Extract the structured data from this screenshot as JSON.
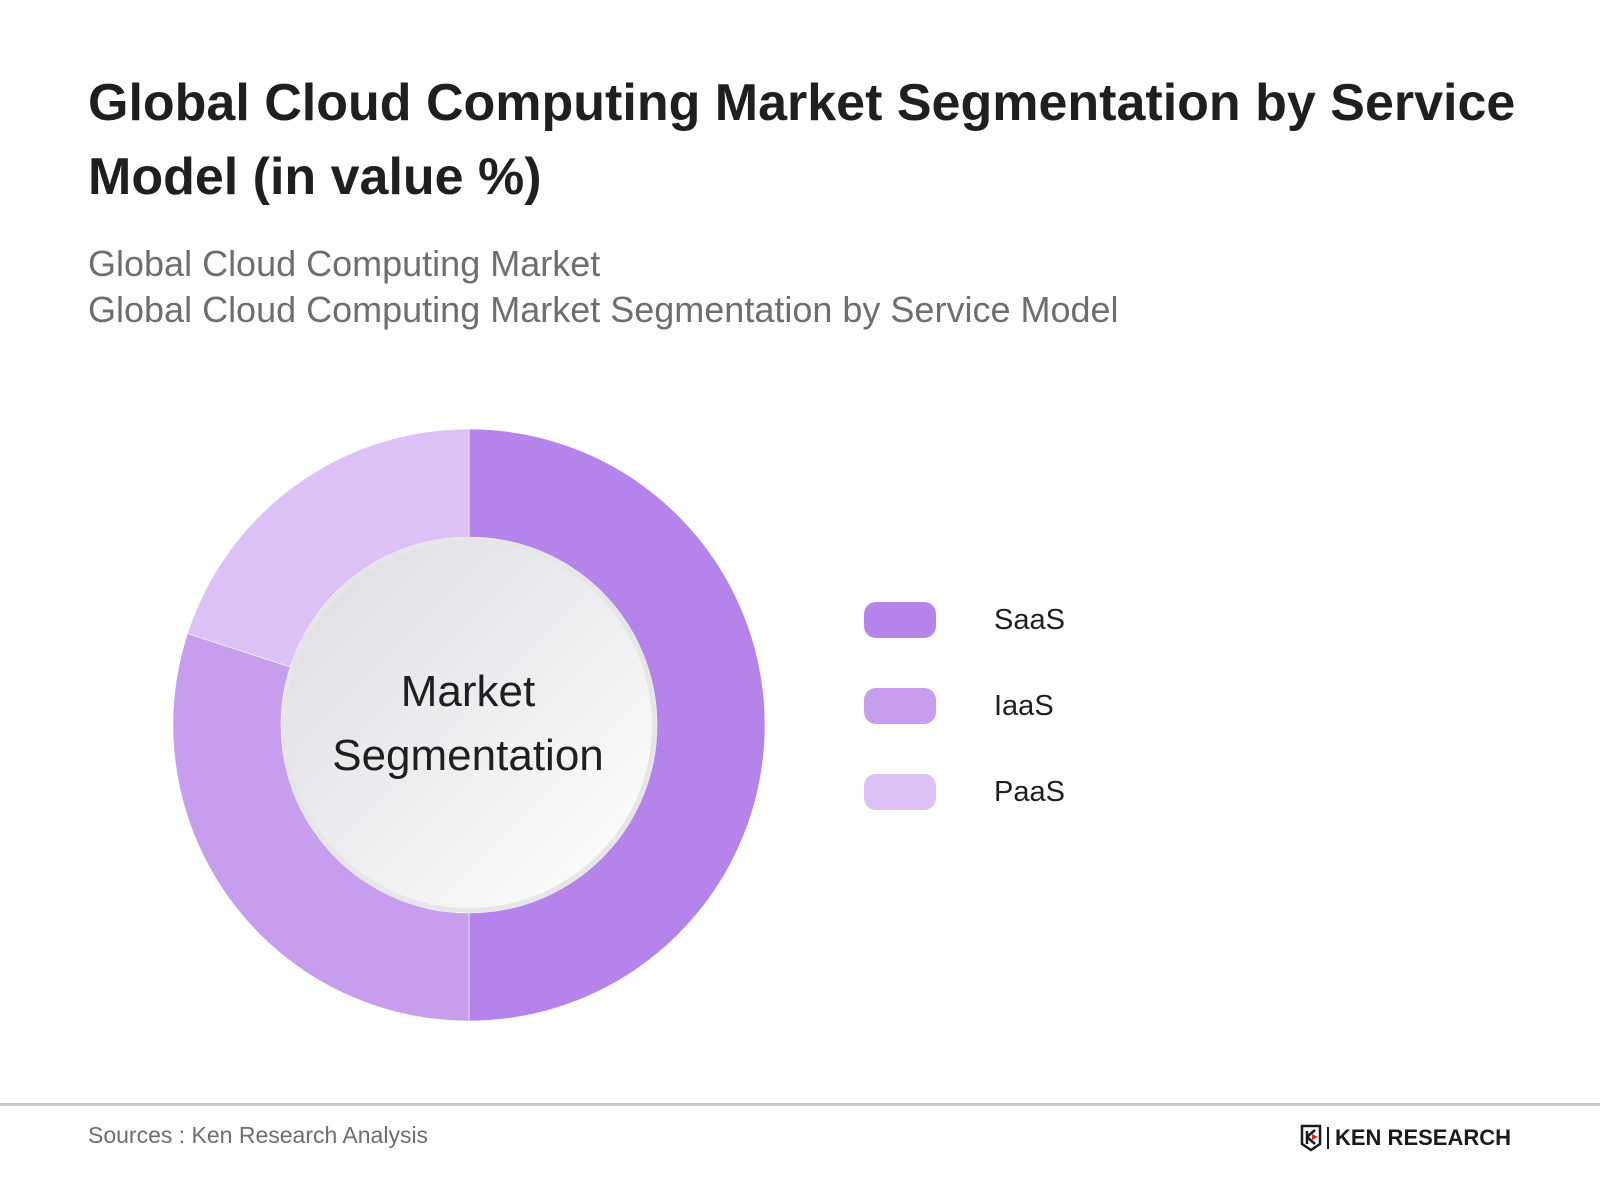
{
  "title": "Global Cloud Computing Market Segmentation by Service Model (in value %)",
  "subtitle_1": "Global Cloud Computing Market",
  "subtitle_2": "Global Cloud Computing Market Segmentation by Service Model",
  "chart_data": {
    "type": "pie",
    "variant": "donut",
    "center_label": "Market Segmentation",
    "categories": [
      "SaaS",
      "IaaS",
      "PaaS"
    ],
    "values": [
      50,
      30,
      20
    ],
    "unit": "%",
    "colors": [
      "#b584ea",
      "#c79ded",
      "#dcc1f6"
    ],
    "legend_position": "right"
  },
  "footer": {
    "sources": "Sources : Ken Research Analysis",
    "logo_text": "KEN RESEARCH"
  }
}
